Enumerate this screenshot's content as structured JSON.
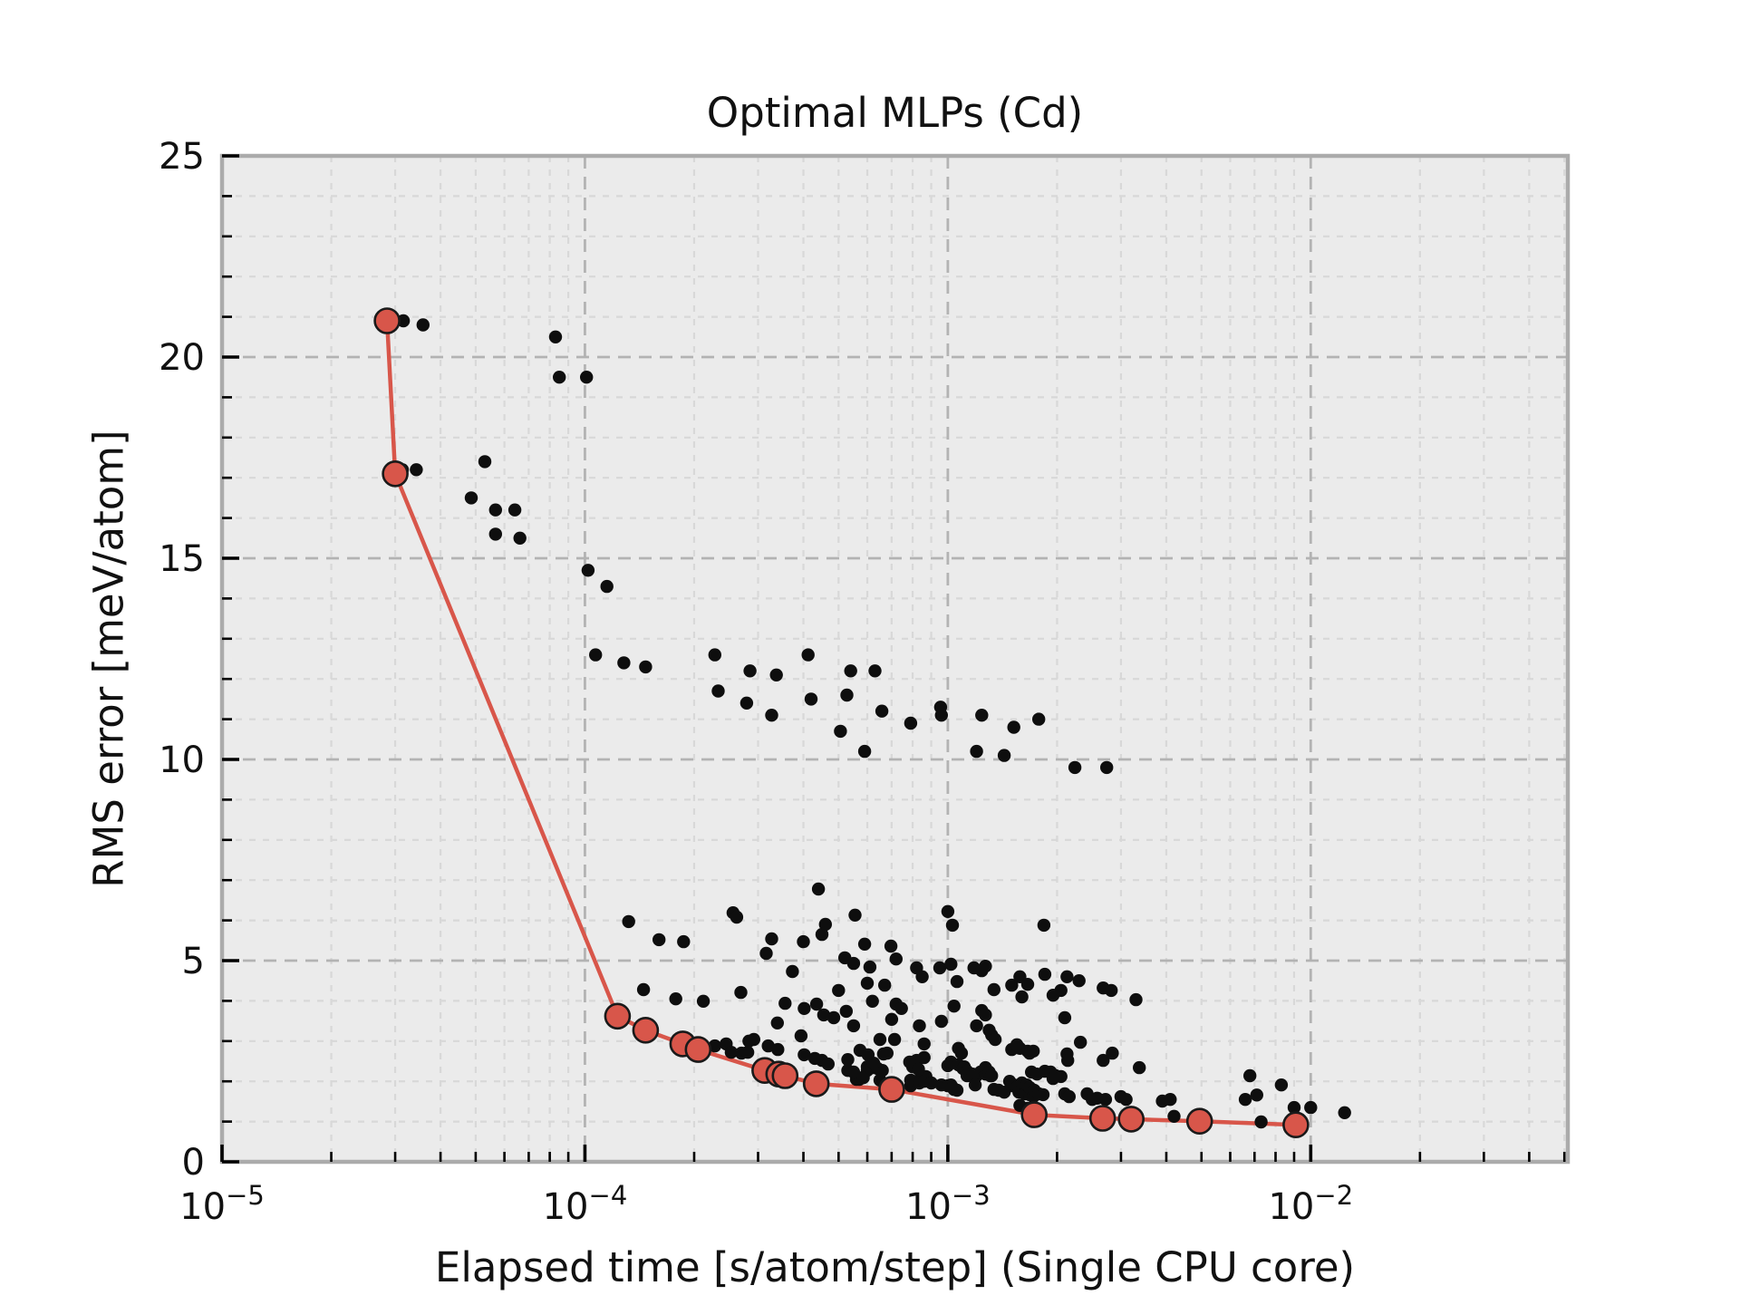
{
  "chart_data": {
    "type": "scatter",
    "title": "Optimal MLPs (Cd)",
    "xlabel": "Elapsed time [s/atom/step] (Single CPU core)",
    "ylabel": "RMS error [meV/atom]",
    "x_scale": "log",
    "xlim": [
      1e-05,
      0.0511
    ],
    "ylim": [
      0,
      25
    ],
    "grid": {
      "major": true,
      "minor": true
    },
    "legend": "none",
    "x_ticks": [
      {
        "value": 1e-05,
        "mantissa": "10",
        "exponent": "−5"
      },
      {
        "value": 0.0001,
        "mantissa": "10",
        "exponent": "−4"
      },
      {
        "value": 0.001,
        "mantissa": "10",
        "exponent": "−3"
      },
      {
        "value": 0.01,
        "mantissa": "10",
        "exponent": "−2"
      }
    ],
    "y_ticks": [
      {
        "value": 0,
        "label": "0"
      },
      {
        "value": 5,
        "label": "5"
      },
      {
        "value": 10,
        "label": "10"
      },
      {
        "value": 15,
        "label": "15"
      },
      {
        "value": 20,
        "label": "20"
      },
      {
        "value": 25,
        "label": "25"
      }
    ],
    "y_minor_step": 1,
    "colors": {
      "plot_bg": "#ebebeb",
      "major_grid": "#b3b3b3",
      "minor_grid": "#d8d8d8",
      "spine": "#ababab",
      "tick": "#000000",
      "scatter": "#0e0e0e",
      "pareto": "#d8564a",
      "pareto_edge": "#1a1a1a"
    },
    "series": [
      {
        "name": "mlp-models",
        "type": "scatter",
        "points": [
          [
            3.16e-05,
            20.9
          ],
          [
            3.58e-05,
            20.8
          ],
          [
            8.3e-05,
            20.5
          ],
          [
            8.5e-05,
            19.5
          ],
          [
            0.000101,
            19.5
          ],
          [
            5.3e-05,
            17.4
          ],
          [
            3.14e-05,
            17.2
          ],
          [
            3.43e-05,
            17.2
          ],
          [
            4.86e-05,
            16.5
          ],
          [
            5.67e-05,
            16.2
          ],
          [
            6.41e-05,
            16.2
          ],
          [
            5.67e-05,
            15.6
          ],
          [
            6.62e-05,
            15.5
          ],
          [
            0.000102,
            14.7
          ],
          [
            0.000115,
            14.3
          ],
          [
            0.000107,
            12.6
          ],
          [
            0.000128,
            12.4
          ],
          [
            0.000147,
            12.3
          ],
          [
            0.000228,
            12.6
          ],
          [
            0.000285,
            12.2
          ],
          [
            0.000337,
            12.1
          ],
          [
            0.000233,
            11.7
          ],
          [
            0.000279,
            11.4
          ],
          [
            0.000327,
            11.1
          ],
          [
            0.000412,
            12.6
          ],
          [
            0.00042,
            11.5
          ],
          [
            0.00054,
            12.2
          ],
          [
            0.000527,
            11.6
          ],
          [
            0.000506,
            10.7
          ],
          [
            0.00059,
            10.2
          ],
          [
            0.00063,
            12.2
          ],
          [
            0.000658,
            11.2
          ],
          [
            0.00079,
            10.9
          ],
          [
            0.000955,
            11.3
          ],
          [
            0.00096,
            11.1
          ],
          [
            0.00124,
            11.1
          ],
          [
            0.00152,
            10.8
          ],
          [
            0.00178,
            11.0
          ],
          [
            0.0012,
            10.2
          ],
          [
            0.00143,
            10.1
          ],
          [
            0.00224,
            9.8
          ],
          [
            0.00274,
            9.8
          ],
          [
            0.000132,
            5.97
          ],
          [
            0.00016,
            5.52
          ],
          [
            0.000187,
            5.47
          ],
          [
            0.000256,
            6.19
          ],
          [
            0.000262,
            6.08
          ],
          [
            0.000316,
            5.18
          ],
          [
            0.000327,
            5.54
          ],
          [
            0.00044,
            6.78
          ],
          [
            0.0004,
            5.47
          ],
          [
            0.00045,
            5.65
          ],
          [
            0.00046,
            5.9
          ],
          [
            0.000555,
            6.13
          ],
          [
            0.00059,
            5.41
          ],
          [
            0.000697,
            5.36
          ],
          [
            0.00072,
            5.04
          ],
          [
            0.00052,
            5.07
          ],
          [
            0.001,
            6.22
          ],
          [
            0.00103,
            5.88
          ],
          [
            0.00184,
            5.88
          ],
          [
            0.00061,
            4.84
          ],
          [
            0.00082,
            4.82
          ],
          [
            0.00085,
            4.6
          ],
          [
            0.00095,
            4.82
          ],
          [
            0.00102,
            4.91
          ],
          [
            0.00106,
            4.48
          ],
          [
            0.00118,
            4.82
          ],
          [
            0.00124,
            4.75
          ],
          [
            0.00127,
            4.86
          ],
          [
            0.00134,
            4.28
          ],
          [
            0.0015,
            4.39
          ],
          [
            0.00158,
            4.6
          ],
          [
            0.00166,
            4.41
          ],
          [
            0.0016,
            4.1
          ],
          [
            0.00185,
            4.66
          ],
          [
            0.00195,
            4.14
          ],
          [
            0.00205,
            4.26
          ],
          [
            0.00213,
            4.6
          ],
          [
            0.0023,
            4.5
          ],
          [
            0.00268,
            4.32
          ],
          [
            0.00282,
            4.26
          ],
          [
            0.0033,
            4.03
          ],
          [
            0.000145,
            4.28
          ],
          [
            0.000178,
            4.05
          ],
          [
            0.000212,
            3.99
          ],
          [
            0.000269,
            4.21
          ],
          [
            0.000373,
            4.73
          ],
          [
            0.00055,
            4.93
          ],
          [
            0.0005,
            4.26
          ],
          [
            0.0006,
            4.44
          ],
          [
            0.00067,
            4.39
          ],
          [
            0.000356,
            3.94
          ],
          [
            0.000339,
            3.45
          ],
          [
            0.000394,
            3.13
          ],
          [
            0.000525,
            3.74
          ],
          [
            0.00055,
            3.38
          ],
          [
            0.00062,
            3.99
          ],
          [
            0.0007,
            3.54
          ],
          [
            0.00072,
            3.92
          ],
          [
            0.000745,
            3.81
          ],
          [
            0.000835,
            3.38
          ],
          [
            0.00096,
            3.49
          ],
          [
            0.00104,
            3.87
          ],
          [
            0.0012,
            3.38
          ],
          [
            0.00124,
            3.76
          ],
          [
            0.00127,
            3.65
          ],
          [
            0.0013,
            3.27
          ],
          [
            0.00132,
            3.15
          ],
          [
            0.00135,
            3.04
          ],
          [
            0.0021,
            3.58
          ],
          [
            0.00232,
            2.97
          ],
          [
            0.000713,
            3.04
          ],
          [
            0.00065,
            3.04
          ],
          [
            0.000402,
            3.81
          ],
          [
            0.000435,
            3.92
          ],
          [
            0.000455,
            3.65
          ],
          [
            0.000485,
            3.58
          ],
          [
            0.000228,
            2.88
          ],
          [
            0.000245,
            2.93
          ],
          [
            0.000253,
            2.72
          ],
          [
            0.00027,
            2.7
          ],
          [
            0.000281,
            2.72
          ],
          [
            0.000292,
            3.04
          ],
          [
            0.00032,
            2.88
          ],
          [
            0.00034,
            2.79
          ],
          [
            0.000402,
            2.66
          ],
          [
            0.00045,
            2.52
          ],
          [
            0.000468,
            2.43
          ],
          [
            0.00053,
            2.54
          ],
          [
            0.000573,
            2.77
          ],
          [
            0.000603,
            2.66
          ],
          [
            0.0006,
            2.36
          ],
          [
            0.00062,
            2.34
          ],
          [
            0.00066,
            2.27
          ],
          [
            0.000665,
            2.68
          ],
          [
            0.00068,
            2.7
          ],
          [
            0.0008,
            2.36
          ],
          [
            0.00082,
            2.52
          ],
          [
            0.00086,
            2.59
          ],
          [
            0.00086,
            2.93
          ],
          [
            0.001,
            2.39
          ],
          [
            0.00102,
            2.48
          ],
          [
            0.00107,
            2.41
          ],
          [
            0.0011,
            2.32
          ],
          [
            0.00107,
            2.82
          ],
          [
            0.00109,
            2.7
          ],
          [
            0.00111,
            2.36
          ],
          [
            0.0015,
            2.79
          ],
          [
            0.00158,
            2.82
          ],
          [
            0.00166,
            2.75
          ],
          [
            0.00155,
            2.91
          ],
          [
            0.00168,
            2.7
          ],
          [
            0.00172,
            2.75
          ],
          [
            0.00185,
            2.25
          ],
          [
            0.00192,
            2.23
          ],
          [
            0.00198,
            2.14
          ],
          [
            0.00205,
            2.12
          ],
          [
            0.00213,
            2.68
          ],
          [
            0.00214,
            2.52
          ],
          [
            0.00268,
            2.52
          ],
          [
            0.00284,
            2.7
          ],
          [
            0.00337,
            2.34
          ],
          [
            0.0068,
            2.14
          ],
          [
            0.000785,
            2.48
          ],
          [
            0.00053,
            2.27
          ],
          [
            0.0006,
            2.27
          ],
          [
            0.00064,
            2.32
          ],
          [
            0.000283,
            3.0
          ],
          [
            0.00043,
            2.57
          ],
          [
            0.000625,
            2.45
          ],
          [
            0.000585,
            2.09
          ],
          [
            0.00057,
            2.05
          ],
          [
            0.00065,
            2.03
          ],
          [
            0.00056,
            2.05
          ],
          [
            0.00058,
            2.09
          ],
          [
            0.00079,
            1.89
          ],
          [
            0.00082,
            2.0
          ],
          [
            0.00087,
            2.12
          ],
          [
            0.00079,
            2.03
          ],
          [
            0.000835,
            1.96
          ],
          [
            0.00086,
            2.0
          ],
          [
            0.0009,
            1.96
          ],
          [
            0.00083,
            2.3
          ],
          [
            0.00113,
            2.25
          ],
          [
            0.00117,
            2.18
          ],
          [
            0.0012,
            2.14
          ],
          [
            0.00123,
            2.23
          ],
          [
            0.00127,
            2.18
          ],
          [
            0.00131,
            2.14
          ],
          [
            0.00113,
            2.14
          ],
          [
            0.00117,
            2.12
          ],
          [
            0.00119,
            1.91
          ],
          [
            0.00127,
            2.34
          ],
          [
            0.0013,
            2.23
          ],
          [
            0.00132,
            2.14
          ],
          [
            0.00102,
            1.91
          ],
          [
            0.00104,
            1.8
          ],
          [
            0.00106,
            1.78
          ],
          [
            0.00096,
            1.91
          ],
          [
            0.001,
            1.89
          ],
          [
            0.00103,
            1.85
          ],
          [
            0.00134,
            1.8
          ],
          [
            0.00138,
            1.78
          ],
          [
            0.00143,
            1.73
          ],
          [
            0.00148,
            2.0
          ],
          [
            0.0015,
            1.89
          ],
          [
            0.00152,
            1.91
          ],
          [
            0.00155,
            1.85
          ],
          [
            0.00157,
            1.73
          ],
          [
            0.0016,
            1.78
          ],
          [
            0.0016,
            1.96
          ],
          [
            0.00163,
            1.69
          ],
          [
            0.00165,
            1.91
          ],
          [
            0.00168,
            1.67
          ],
          [
            0.00168,
            1.85
          ],
          [
            0.00172,
            1.62
          ],
          [
            0.00173,
            1.78
          ],
          [
            0.00178,
            1.69
          ],
          [
            0.00183,
            1.67
          ],
          [
            0.0017,
            2.23
          ],
          [
            0.00176,
            2.18
          ],
          [
            0.00195,
            2.07
          ],
          [
            0.0021,
            1.69
          ],
          [
            0.00216,
            1.62
          ],
          [
            0.00242,
            1.69
          ],
          [
            0.00055,
            2.23
          ],
          [
            0.00158,
            1.4
          ],
          [
            0.00166,
            1.33
          ],
          [
            0.0025,
            1.55
          ],
          [
            0.00258,
            1.58
          ],
          [
            0.00272,
            1.55
          ],
          [
            0.003,
            1.62
          ],
          [
            0.0031,
            1.55
          ],
          [
            0.0039,
            1.51
          ],
          [
            0.0041,
            1.55
          ],
          [
            0.0042,
            1.13
          ],
          [
            0.0066,
            1.55
          ],
          [
            0.0071,
            1.66
          ],
          [
            0.0083,
            1.91
          ],
          [
            0.009,
            1.35
          ],
          [
            0.01,
            1.35
          ],
          [
            0.0124,
            1.22
          ],
          [
            0.0073,
            0.99
          ]
        ]
      },
      {
        "name": "pareto-front",
        "type": "line+markers",
        "points": [
          [
            2.85e-05,
            20.9
          ],
          [
            3e-05,
            17.1
          ],
          [
            0.000123,
            3.62
          ],
          [
            0.000147,
            3.27
          ],
          [
            0.000186,
            2.93
          ],
          [
            0.000205,
            2.79
          ],
          [
            0.000313,
            2.27
          ],
          [
            0.000342,
            2.18
          ],
          [
            0.000356,
            2.14
          ],
          [
            0.000434,
            1.94
          ],
          [
            0.0007,
            1.8
          ],
          [
            0.00173,
            1.17
          ],
          [
            0.00267,
            1.08
          ],
          [
            0.0032,
            1.06
          ],
          [
            0.00494,
            1.01
          ],
          [
            0.0091,
            0.92
          ]
        ]
      }
    ]
  }
}
